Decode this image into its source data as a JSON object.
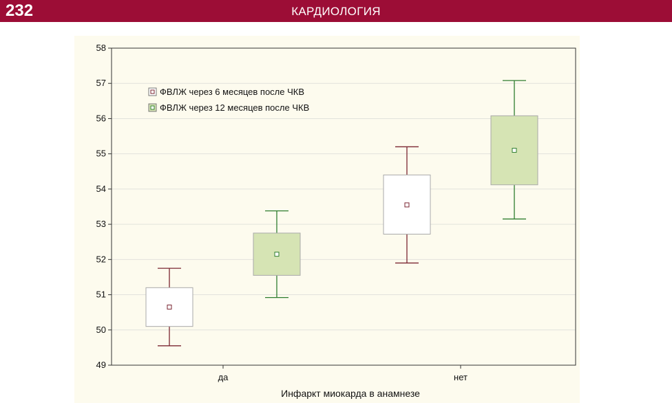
{
  "header": {
    "page_number": "232",
    "section_title": "КАРДИОЛОГИЯ",
    "background_color": "#9c0d36"
  },
  "chart_data": {
    "type": "boxplot",
    "xlabel": "Инфаркт миокарда в анамнезе",
    "ylabel": "",
    "ylim": [
      49,
      58
    ],
    "yticks": [
      49,
      50,
      51,
      52,
      53,
      54,
      55,
      56,
      57,
      58
    ],
    "categories": [
      "да",
      "нет"
    ],
    "grid": true,
    "legend_position": "top-left",
    "series": [
      {
        "name": "ФВЛЖ через 6 месяцев после ЧКВ",
        "color": "#7a2430",
        "fill": "#ffffff",
        "boxes": [
          {
            "center": 50.65,
            "box_low": 50.1,
            "box_high": 51.2,
            "whisker_low": 49.55,
            "whisker_high": 51.75
          },
          {
            "center": 53.55,
            "box_low": 52.72,
            "box_high": 54.4,
            "whisker_low": 51.9,
            "whisker_high": 55.2
          }
        ]
      },
      {
        "name": "ФВЛЖ через 12 месяцев после ЧКВ",
        "color": "#2e7d2e",
        "fill": "#d6e4b4",
        "boxes": [
          {
            "center": 52.15,
            "box_low": 51.55,
            "box_high": 52.75,
            "whisker_low": 50.92,
            "whisker_high": 53.38
          },
          {
            "center": 55.1,
            "box_low": 54.12,
            "box_high": 56.08,
            "whisker_low": 53.15,
            "whisker_high": 57.08
          }
        ]
      }
    ]
  }
}
